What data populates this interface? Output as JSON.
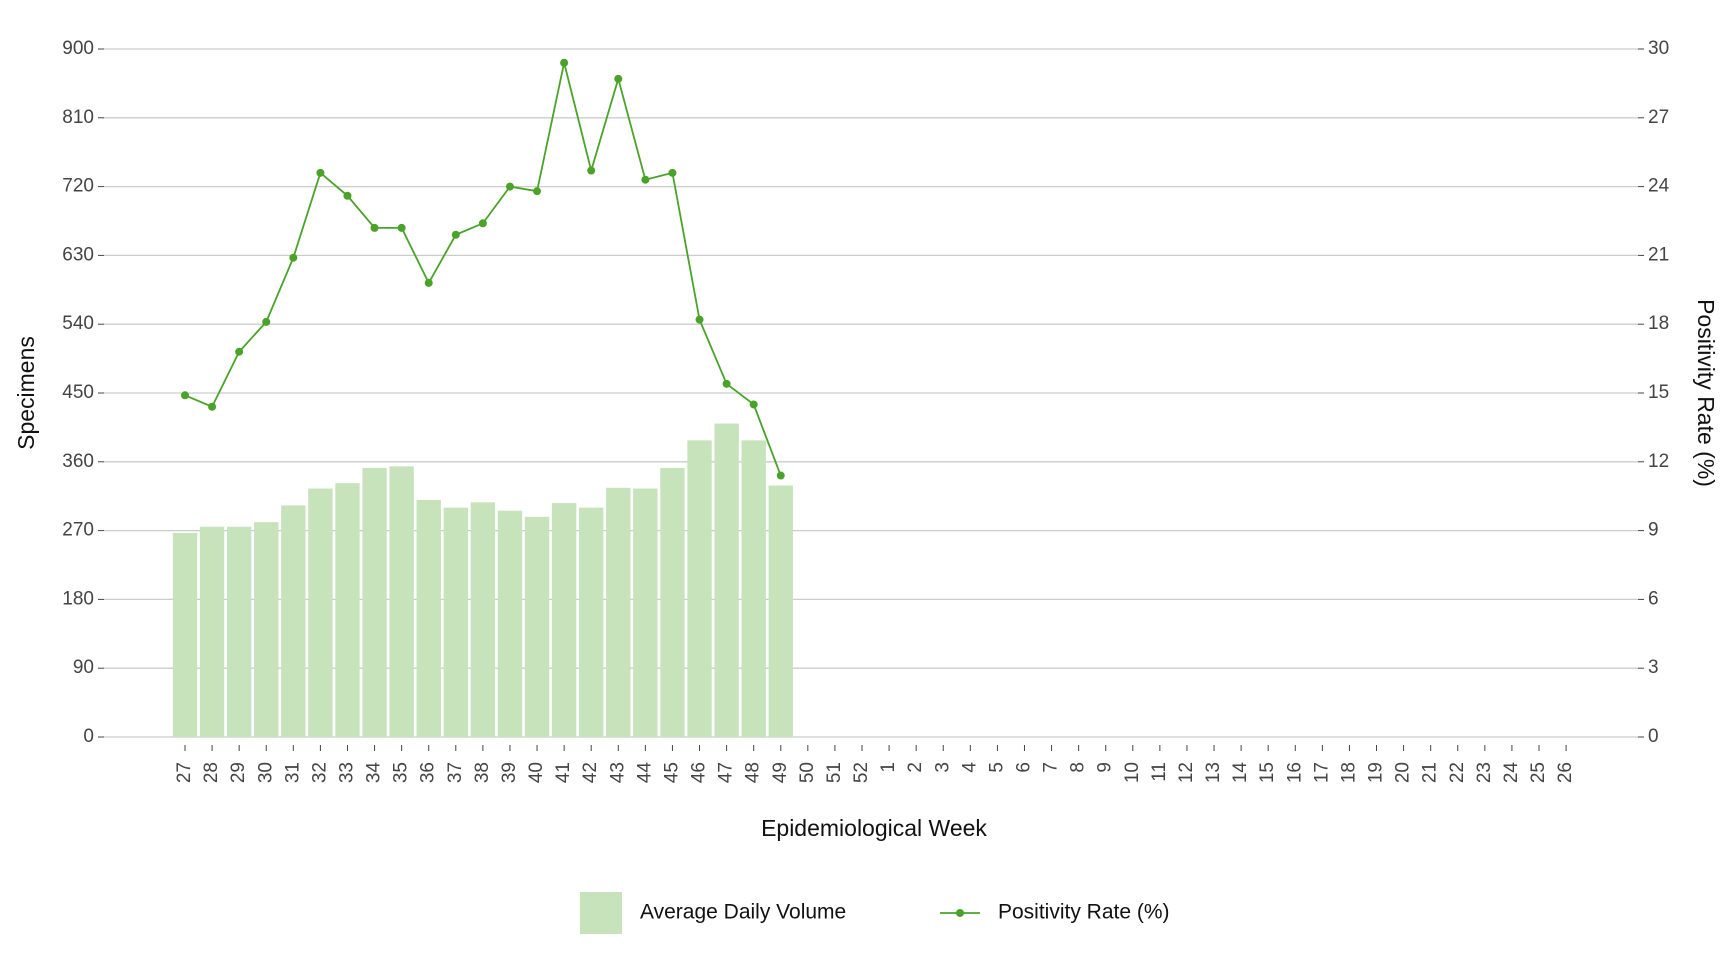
{
  "chart_data": {
    "type": "bar-line",
    "x_label": "Epidemiological Week",
    "y_label": "Specimens",
    "y2_label": "Positivity Rate (%)",
    "categories": [
      "27",
      "28",
      "29",
      "30",
      "31",
      "32",
      "33",
      "34",
      "35",
      "36",
      "37",
      "38",
      "39",
      "40",
      "41",
      "42",
      "43",
      "44",
      "45",
      "46",
      "47",
      "48",
      "49",
      "50",
      "51",
      "52",
      "1",
      "2",
      "3",
      "4",
      "5",
      "6",
      "7",
      "8",
      "9",
      "10",
      "11",
      "12",
      "13",
      "14",
      "15",
      "16",
      "17",
      "18",
      "19",
      "20",
      "21",
      "22",
      "23",
      "24",
      "25",
      "26"
    ],
    "series": [
      {
        "name": "Average Daily Volume",
        "type": "bar",
        "color": "#c7e3bb",
        "values": [
          267,
          275,
          275,
          281,
          303,
          325,
          332,
          352,
          354,
          310,
          300,
          307,
          296,
          288,
          306,
          300,
          326,
          325,
          352,
          388,
          410,
          388,
          329,
          null,
          null,
          null,
          null,
          null,
          null,
          null,
          null,
          null,
          null,
          null,
          null,
          null,
          null,
          null,
          null,
          null,
          null,
          null,
          null,
          null,
          null,
          null,
          null,
          null,
          null,
          null,
          null,
          null
        ]
      },
      {
        "name": "Positivity Rate (%)",
        "type": "line",
        "axis": "y2",
        "color": "#4aa329",
        "values": [
          14.9,
          14.4,
          16.8,
          18.1,
          20.9,
          24.6,
          23.6,
          22.2,
          22.2,
          19.8,
          21.9,
          22.4,
          24.0,
          23.8,
          29.4,
          24.7,
          28.7,
          24.3,
          24.6,
          18.2,
          15.4,
          14.5,
          11.4,
          null,
          null,
          null,
          null,
          null,
          null,
          null,
          null,
          null,
          null,
          null,
          null,
          null,
          null,
          null,
          null,
          null,
          null,
          null,
          null,
          null,
          null,
          null,
          null,
          null,
          null,
          null,
          null,
          null
        ]
      }
    ],
    "ylim": [
      0,
      900
    ],
    "yticks": [
      0,
      90,
      180,
      270,
      360,
      450,
      540,
      630,
      720,
      810,
      900
    ],
    "y2lim": [
      0,
      30
    ],
    "y2ticks": [
      0,
      3,
      6,
      9,
      12,
      15,
      18,
      21,
      24,
      27,
      30
    ],
    "grid": true,
    "legend": "bottom"
  }
}
